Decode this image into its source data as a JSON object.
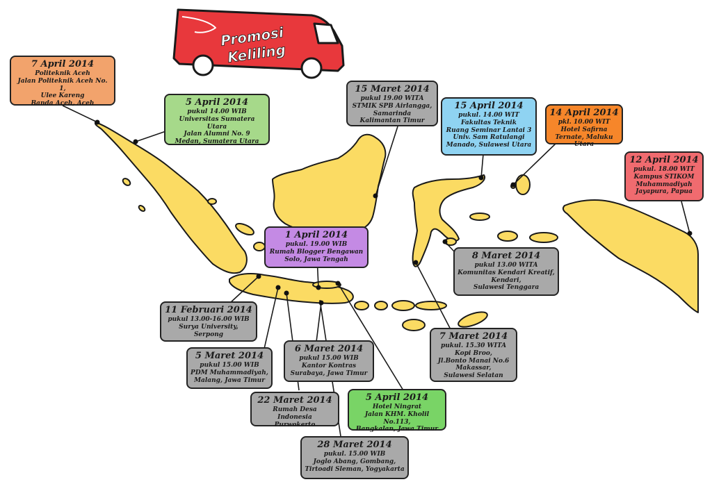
{
  "van": {
    "text_line1": "Promosi",
    "text_line2": "Keliling"
  },
  "colors": {
    "land": "#fbdb63",
    "van": "#e8383c",
    "outline": "#1a1a1a"
  },
  "events": [
    {
      "id": "aceh",
      "date": "7 April 2014",
      "lines": [
        "Politeknik Aceh",
        "Jalan Politeknik Aceh No. 1,",
        "Ulee Kareng",
        "Banda Aceh, Aceh"
      ]
    },
    {
      "id": "medan",
      "date": "5 April 2014",
      "lines": [
        "pukul 14.00 WIB",
        "Universitas Sumatera Utara",
        "Jalan Alumni No. 9",
        "Medan, Sumatera Utara"
      ]
    },
    {
      "id": "samarinda",
      "date": "15 Maret 2014",
      "lines": [
        "pukul 19.00 WITA",
        "STMIK SPB Airlangga,",
        "Samarinda",
        "Kalimantan Timur"
      ]
    },
    {
      "id": "manado",
      "date": "15 April 2014",
      "lines": [
        "pukul. 14.00 WIT",
        "Fakultas Teknik",
        "Ruang Seminar Lantai 3",
        "Univ. Sam Ratulangi",
        "Manado, Sulawesi Utara"
      ]
    },
    {
      "id": "ternate",
      "date": "14 April 2014",
      "lines": [
        "pkl. 10.00 WIT",
        "Hotel Safirna",
        "Ternate, Maluku Utara"
      ]
    },
    {
      "id": "jayapura",
      "date": "12 April 2014",
      "lines": [
        "pukul. 18.00 WIT",
        "Kampus STIKOM",
        "Muhammadiyah",
        "Jayapura, Papua"
      ]
    },
    {
      "id": "solo",
      "date": "1 April 2014",
      "lines": [
        "pukul. 19.00 WIB",
        "Rumah Blogger Bengawan",
        "Solo, Jawa Tengah"
      ]
    },
    {
      "id": "kendari",
      "date": "8 Maret 2014",
      "lines": [
        "pukul 13.00 WITA",
        "Komunitas Kendari Kreatif,",
        "Kendari,",
        "Sulawesi Tenggara"
      ]
    },
    {
      "id": "serpong",
      "date": "11 Februari 2014",
      "lines": [
        "pukul 13.00-16.00 WIB",
        "Surya University,",
        "Serpong"
      ]
    },
    {
      "id": "makassar",
      "date": "7 Maret 2014",
      "lines": [
        "pukul. 15.30 WITA",
        "Kopi Broo,",
        "Jl.Bonto Manai No.6",
        "Makassar,",
        "Sulawesi  Selatan"
      ]
    },
    {
      "id": "malang",
      "date": "5 Maret 2014",
      "lines": [
        "pukul 15.00 WIB",
        "PDM Muhammadiyah,",
        "Malang, Jawa Timur"
      ]
    },
    {
      "id": "surabaya",
      "date": "6 Maret 2014",
      "lines": [
        "pukul 15.00 WIB",
        "Kantor Kontras",
        "Surabaya, Jawa Timur"
      ]
    },
    {
      "id": "bangkalan",
      "date": "5 April 2014",
      "lines": [
        "Hotel Ningrat",
        "Jalan KHM. Kholil No.113,",
        "Bangkalan, Jawa Timur"
      ]
    },
    {
      "id": "purwokerto",
      "date": "22 Maret 2014",
      "lines": [
        "Rumah Desa Indonesia",
        "Purwokerto"
      ]
    },
    {
      "id": "yogyakarta",
      "date": "28 Maret 2014",
      "lines": [
        "pukul. 15.00 WIB",
        "Joglo Abang, Gombang,",
        "Tirtoadi Sleman, Yogyakarta"
      ]
    }
  ]
}
